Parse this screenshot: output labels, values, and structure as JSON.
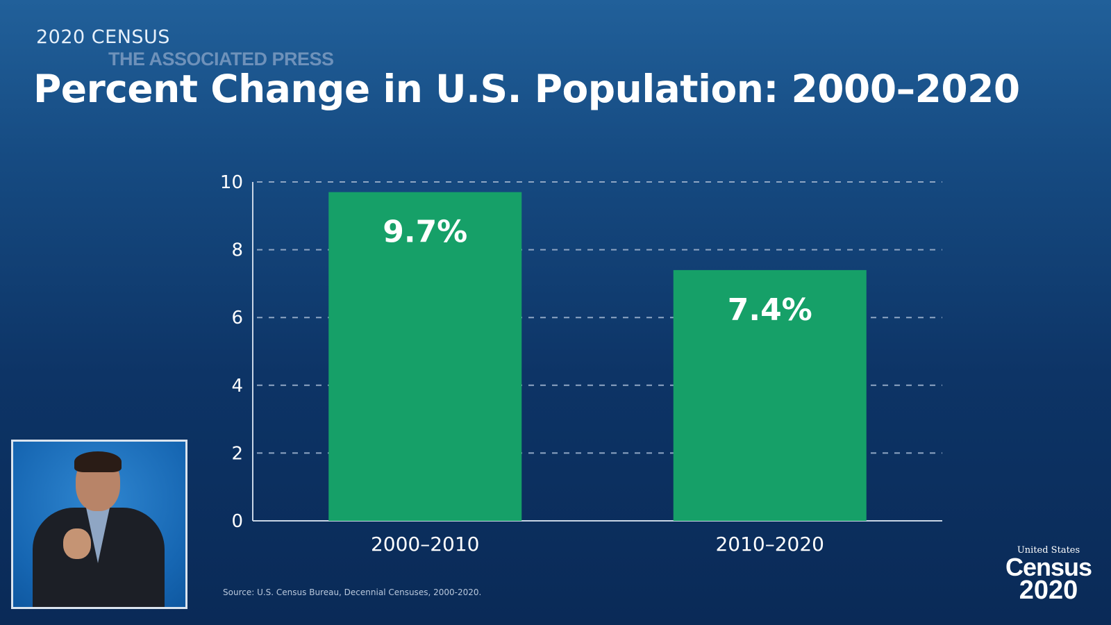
{
  "header": {
    "kicker": "2020 CENSUS",
    "watermark": "THE ASSOCIATED PRESS",
    "title": "Percent Change in U.S. Population: 2000–2020"
  },
  "footer": {
    "source": "Source: U.S. Census Bureau, Decennial Censuses, 2000-2020.",
    "logo_top": "United States",
    "logo_mid": "Census",
    "logo_year": "2020"
  },
  "colors": {
    "bar": "#16a068",
    "grid": "#8fa6c4"
  },
  "chart_data": {
    "type": "bar",
    "categories": [
      "2000–2010",
      "2010–2020"
    ],
    "values": [
      9.7,
      7.4
    ],
    "data_labels": [
      "9.7%",
      "7.4%"
    ],
    "title": "Percent Change in U.S. Population: 2000–2020",
    "xlabel": "",
    "ylabel": "",
    "ylim": [
      0,
      10
    ],
    "yticks": [
      0,
      2,
      4,
      6,
      8,
      10
    ],
    "grid": true
  }
}
